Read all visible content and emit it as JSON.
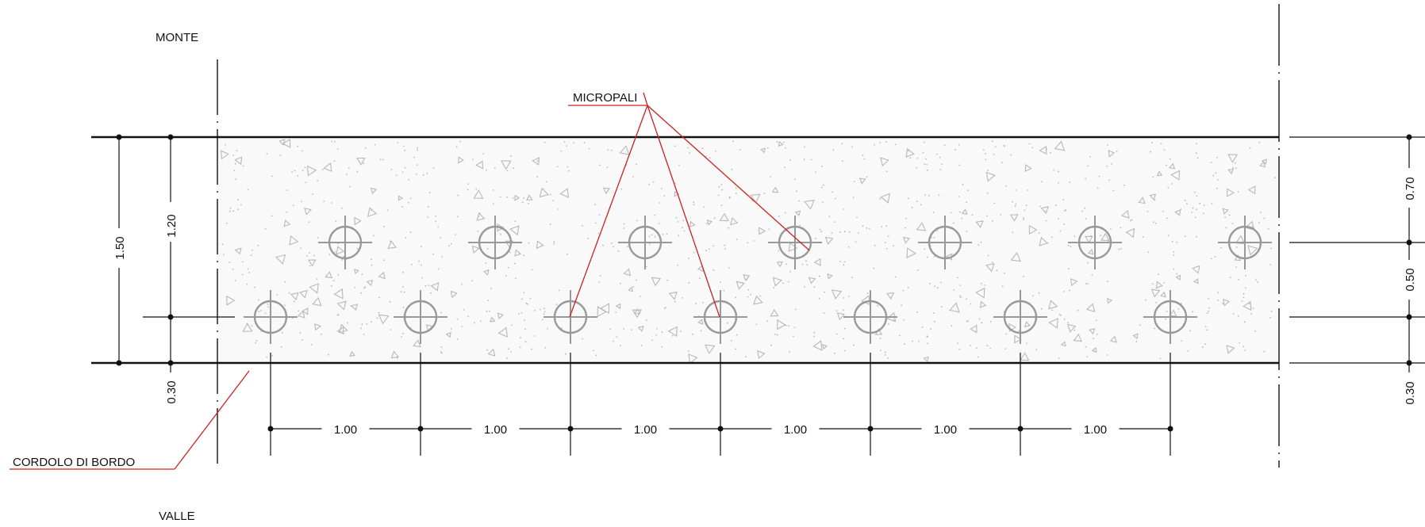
{
  "labels": {
    "monte": "MONTE",
    "valle": "VALLE",
    "micropali": "MICROPALI",
    "cordolo": "CORDOLO DI BORDO"
  },
  "dimensions": {
    "left_total": "1.50",
    "left_inner": "1.20",
    "left_bottom": "0.30",
    "right_top": "0.70",
    "right_mid": "0.50",
    "right_bottom": "0.30",
    "spacings": [
      "1.00",
      "1.00",
      "1.00",
      "1.00",
      "1.00",
      "1.00"
    ]
  },
  "piles": {
    "upper_row_count": 7,
    "lower_row_count": 7,
    "spacing_m": 1.0
  },
  "colors": {
    "line": "#111111",
    "leader": "#cc2020",
    "pile": "#999999",
    "hatch": "#b8b8b8",
    "fill": "#f9f9f9"
  }
}
